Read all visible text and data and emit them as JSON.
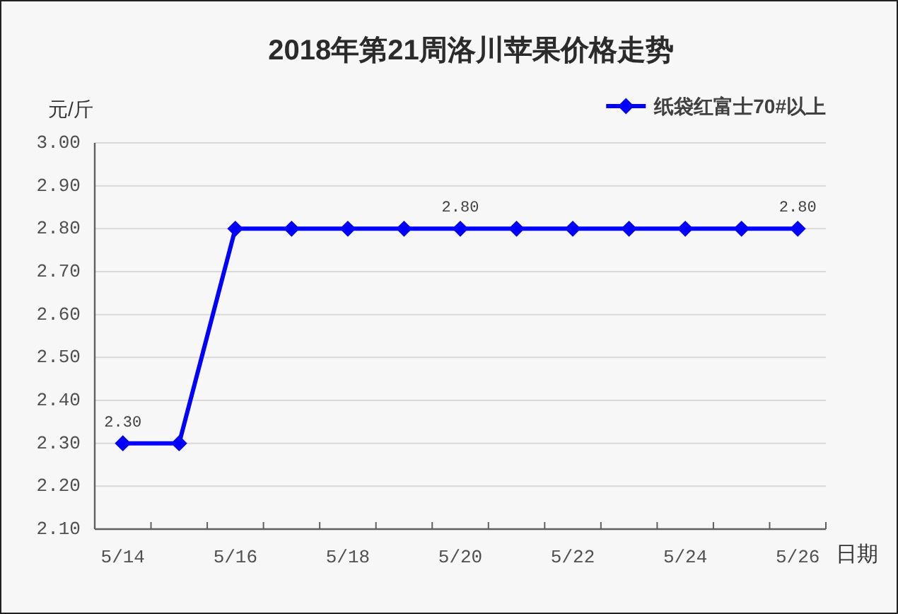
{
  "chart_data": {
    "type": "line",
    "title": "2018年第21周洛川苹果价格走势",
    "xlabel": "日期",
    "ylabel": "元/斤",
    "categories": [
      "5/14",
      null,
      "5/16",
      null,
      "5/18",
      null,
      "5/20",
      null,
      "5/22",
      null,
      "5/24",
      null,
      "5/26"
    ],
    "series": [
      {
        "name": "纸袋红富士70#以上",
        "color": "#0000ff",
        "values": [
          2.3,
          2.3,
          2.8,
          2.8,
          2.8,
          2.8,
          2.8,
          2.8,
          2.8,
          2.8,
          2.8,
          2.8,
          2.8
        ],
        "value_labels": [
          "2.30",
          null,
          null,
          null,
          null,
          null,
          "2.80",
          null,
          null,
          null,
          null,
          null,
          "2.80"
        ]
      }
    ],
    "ylim": [
      2.1,
      3.0
    ],
    "yticks": [
      {
        "value": 2.1,
        "label": "2.10"
      },
      {
        "value": 2.2,
        "label": "2.20"
      },
      {
        "value": 2.3,
        "label": "2.30"
      },
      {
        "value": 2.4,
        "label": "2.40"
      },
      {
        "value": 2.5,
        "label": "2.50"
      },
      {
        "value": 2.6,
        "label": "2.60"
      },
      {
        "value": 2.7,
        "label": "2.70"
      },
      {
        "value": 2.8,
        "label": "2.80"
      },
      {
        "value": 2.9,
        "label": "2.90"
      },
      {
        "value": 3.0,
        "label": "3.00"
      }
    ],
    "grid": "y",
    "legend": "top right",
    "marker": "diamond",
    "line_style": "solid"
  }
}
